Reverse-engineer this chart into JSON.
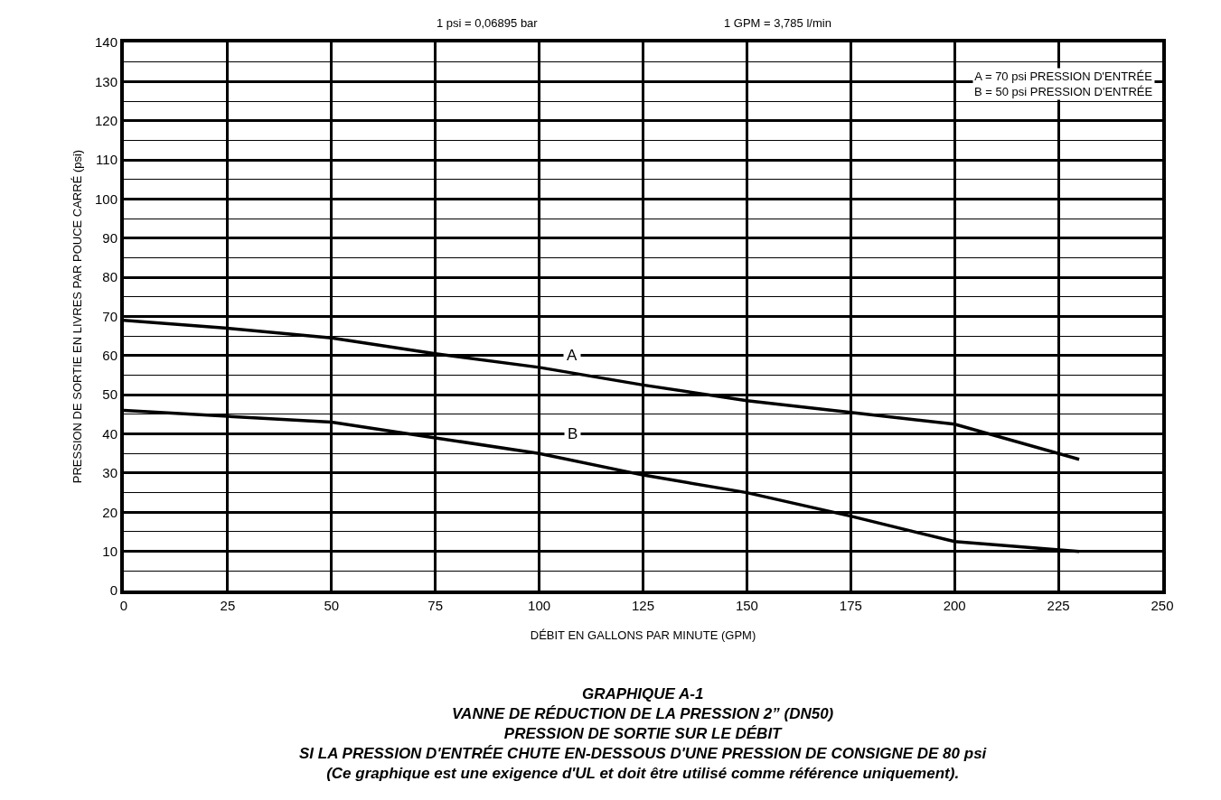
{
  "chart_data": {
    "type": "line",
    "title": "GRAPHIQUE A-1\nVANNE DE RÉDUCTION DE LA PRESSION 2” (DN50)\nPRESSION DE SORTIE SUR LE DÉBIT\nSI LA PRESSION D'ENTRÉE CHUTE EN-DESSOUS D'UNE PRESSION DE CONSIGNE DE 80 psi\n(Ce graphique est une exigence d'UL et doit être utilisé comme référence uniquement).",
    "xlabel": "DÉBIT EN GALLONS PAR MINUTE (GPM)",
    "ylabel": "PRESSION DE SORTIE EN LIVRES PAR POUCE CARRÉ (psi)",
    "x": [
      0,
      25,
      50,
      75,
      100,
      125,
      150,
      175,
      200,
      230
    ],
    "series": [
      {
        "color": "#000000",
        "values": [
          69,
          67,
          64.5,
          60.5,
          57,
          52.5,
          48.5,
          45.5,
          42.5,
          33.5
        ]
      },
      {
        "color": "#000000",
        "values": [
          46,
          44.5,
          43,
          39,
          35,
          29.5,
          25,
          19,
          12.5,
          10
        ]
      }
    ],
    "annotations": [
      "1 psi = 0,06895 bar",
      "1 GPM = 3,785 l/min",
      "A = 70 psi PRESSION D'ENTRÉE\nB = 50 psi PRESSION D'ENTRÉE",
      {
        "text": "A",
        "x": 108,
        "y": 60
      },
      {
        "text": "B",
        "x": 108,
        "y": 40
      }
    ],
    "xlim": [
      0,
      250
    ],
    "xticks": [
      0,
      25,
      50,
      75,
      100,
      125,
      150,
      175,
      200,
      225,
      250
    ],
    "ylim": [
      0,
      140
    ],
    "yticks": [
      0,
      10,
      20,
      30,
      40,
      50,
      60,
      70,
      80,
      90,
      100,
      110,
      120,
      130,
      140
    ],
    "grid": true,
    "marker": "none",
    "line_style": "solid"
  }
}
